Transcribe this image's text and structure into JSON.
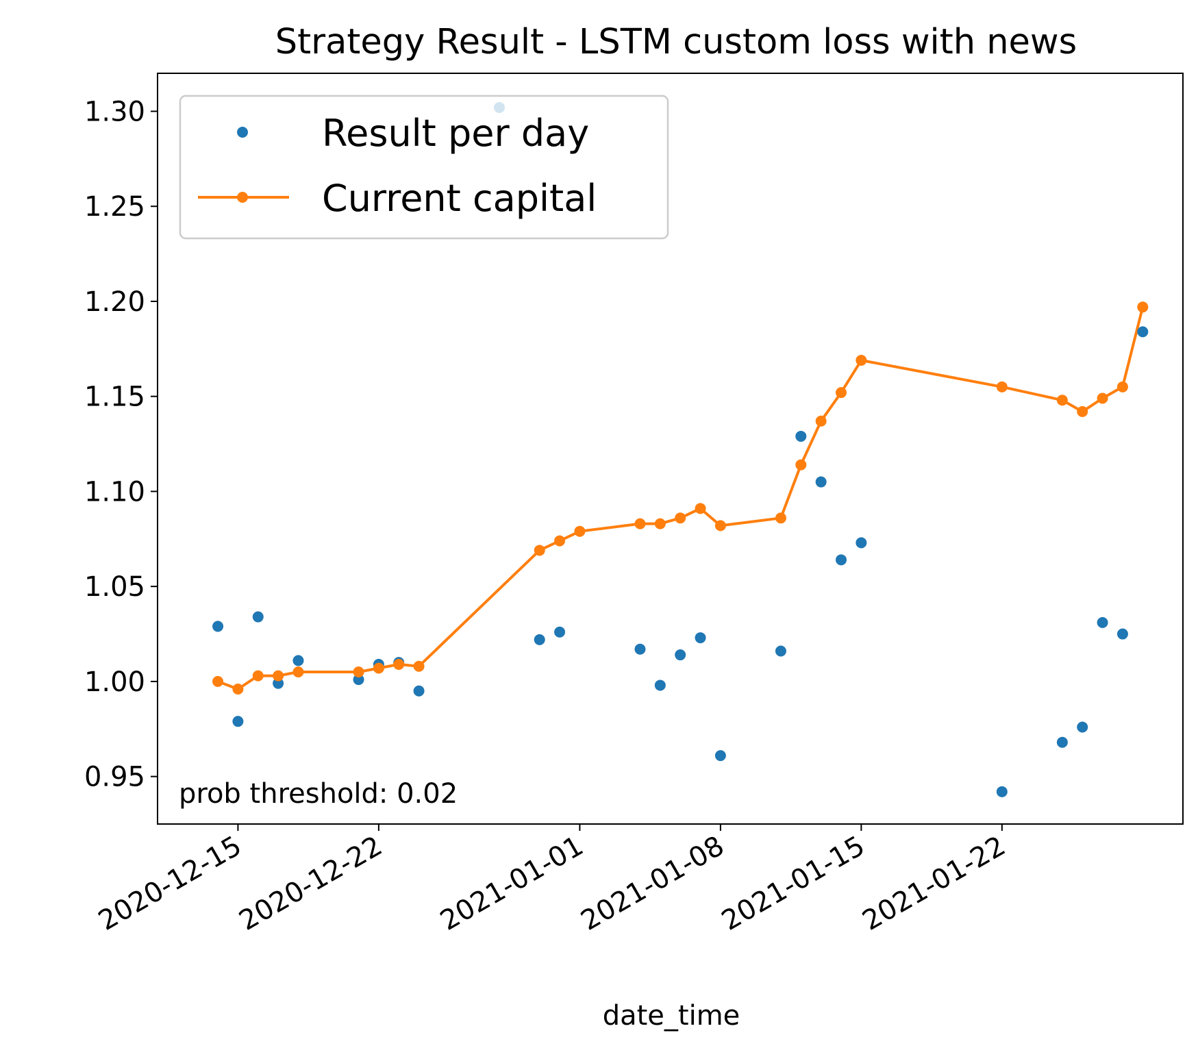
{
  "chart_data": {
    "type": "line",
    "title": "Strategy Result - LSTM custom loss with news",
    "xlabel": "date_time",
    "ylabel": "",
    "x_tick_labels": [
      "2020-12-15",
      "2020-12-22",
      "2021-01-01",
      "2021-01-08",
      "2021-01-15",
      "2021-01-22"
    ],
    "y_tick_labels": [
      "0.95",
      "1.00",
      "1.05",
      "1.10",
      "1.15",
      "1.20",
      "1.25",
      "1.30"
    ],
    "xlim": [
      "2020-12-11",
      "2021-01-31"
    ],
    "ylim": [
      0.925,
      1.32
    ],
    "grid": false,
    "legend_position": "upper-left",
    "annotation": "prob threshold: 0.02",
    "series": [
      {
        "name": "Result per day",
        "style": "markers",
        "color": "#1f77b4",
        "points": [
          [
            "2020-12-14",
            1.029
          ],
          [
            "2020-12-15",
            0.979
          ],
          [
            "2020-12-16",
            1.034
          ],
          [
            "2020-12-17",
            0.999
          ],
          [
            "2020-12-18",
            1.011
          ],
          [
            "2020-12-21",
            1.001
          ],
          [
            "2020-12-22",
            1.009
          ],
          [
            "2020-12-23",
            1.01
          ],
          [
            "2020-12-24",
            0.995
          ],
          [
            "2020-12-28",
            1.302
          ],
          [
            "2020-12-30",
            1.022
          ],
          [
            "2020-12-31",
            1.026
          ],
          [
            "2021-01-04",
            1.017
          ],
          [
            "2021-01-05",
            0.998
          ],
          [
            "2021-01-06",
            1.014
          ],
          [
            "2021-01-07",
            1.023
          ],
          [
            "2021-01-08",
            0.961
          ],
          [
            "2021-01-11",
            1.016
          ],
          [
            "2021-01-12",
            1.129
          ],
          [
            "2021-01-13",
            1.105
          ],
          [
            "2021-01-14",
            1.064
          ],
          [
            "2021-01-15",
            1.073
          ],
          [
            "2021-01-22",
            0.942
          ],
          [
            "2021-01-25",
            0.968
          ],
          [
            "2021-01-26",
            0.976
          ],
          [
            "2021-01-27",
            1.031
          ],
          [
            "2021-01-28",
            1.025
          ],
          [
            "2021-01-29",
            1.184
          ]
        ]
      },
      {
        "name": "Current capital",
        "style": "line-markers",
        "color": "#ff7f0e",
        "points": [
          [
            "2020-12-14",
            1.0
          ],
          [
            "2020-12-15",
            0.996
          ],
          [
            "2020-12-16",
            1.003
          ],
          [
            "2020-12-17",
            1.003
          ],
          [
            "2020-12-18",
            1.005
          ],
          [
            "2020-12-21",
            1.005
          ],
          [
            "2020-12-22",
            1.007
          ],
          [
            "2020-12-23",
            1.009
          ],
          [
            "2020-12-24",
            1.008
          ],
          [
            "2020-12-30",
            1.069
          ],
          [
            "2020-12-31",
            1.074
          ],
          [
            "2021-01-01",
            1.079
          ],
          [
            "2021-01-04",
            1.083
          ],
          [
            "2021-01-05",
            1.083
          ],
          [
            "2021-01-06",
            1.086
          ],
          [
            "2021-01-07",
            1.091
          ],
          [
            "2021-01-08",
            1.082
          ],
          [
            "2021-01-11",
            1.086
          ],
          [
            "2021-01-12",
            1.114
          ],
          [
            "2021-01-13",
            1.137
          ],
          [
            "2021-01-14",
            1.152
          ],
          [
            "2021-01-15",
            1.169
          ],
          [
            "2021-01-22",
            1.155
          ],
          [
            "2021-01-25",
            1.148
          ],
          [
            "2021-01-26",
            1.142
          ],
          [
            "2021-01-27",
            1.149
          ],
          [
            "2021-01-28",
            1.155
          ],
          [
            "2021-01-29",
            1.197
          ]
        ]
      }
    ]
  }
}
